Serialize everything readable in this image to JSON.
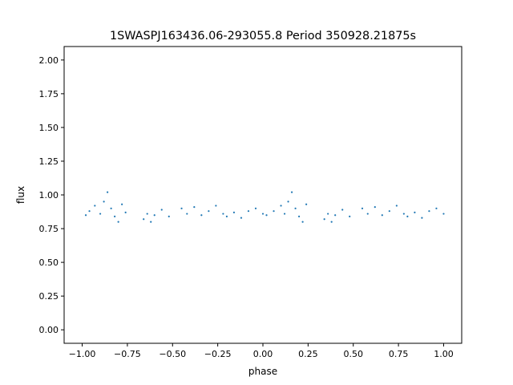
{
  "chart_data": {
    "type": "scatter",
    "title": "1SWASPJ163436.06-293055.8 Period 350928.21875s",
    "xlabel": "phase",
    "ylabel": "flux",
    "xlim": [
      -1.1,
      1.1
    ],
    "ylim": [
      -0.1,
      2.1
    ],
    "x_ticks": [
      -1.0,
      -0.75,
      -0.5,
      -0.25,
      0.0,
      0.25,
      0.5,
      0.75,
      1.0
    ],
    "x_tick_labels": [
      "−1.00",
      "−0.75",
      "−0.50",
      "−0.25",
      "0.00",
      "0.25",
      "0.50",
      "0.75",
      "1.00"
    ],
    "y_ticks": [
      0.0,
      0.25,
      0.5,
      0.75,
      1.0,
      1.25,
      1.5,
      1.75,
      2.0
    ],
    "y_tick_labels": [
      "0.00",
      "0.25",
      "0.50",
      "0.75",
      "1.00",
      "1.25",
      "1.50",
      "1.75",
      "2.00"
    ],
    "grid": false,
    "marker_color": "#1f77b4",
    "series": [
      {
        "x": [
          -0.98,
          -0.96,
          -0.93,
          -0.9,
          -0.88,
          -0.86,
          -0.84,
          -0.82,
          -0.8,
          -0.78,
          -0.76,
          -0.66,
          -0.64,
          -0.62,
          -0.6,
          -0.56,
          -0.52,
          -0.45,
          -0.42,
          -0.38,
          -0.34,
          -0.3,
          -0.26,
          -0.22,
          -0.2,
          -0.16,
          -0.12,
          -0.08,
          -0.04,
          0.0,
          0.02,
          0.06,
          0.1,
          0.12,
          0.14,
          0.16,
          0.18,
          0.2,
          0.22,
          0.24,
          0.34,
          0.36,
          0.38,
          0.4,
          0.44,
          0.48,
          0.55,
          0.58,
          0.62,
          0.66,
          0.7,
          0.74,
          0.78,
          0.8,
          0.84,
          0.88,
          0.92,
          0.96,
          1.0
        ],
        "y": [
          0.85,
          0.88,
          0.92,
          0.86,
          0.95,
          1.02,
          0.9,
          0.84,
          0.8,
          0.93,
          0.87,
          0.82,
          0.86,
          0.8,
          0.85,
          0.89,
          0.84,
          0.9,
          0.86,
          0.91,
          0.85,
          0.88,
          0.92,
          0.86,
          0.84,
          0.87,
          0.83,
          0.88,
          0.9,
          0.86,
          0.85,
          0.88,
          0.92,
          0.86,
          0.95,
          1.02,
          0.9,
          0.84,
          0.8,
          0.93,
          0.82,
          0.86,
          0.8,
          0.85,
          0.89,
          0.84,
          0.9,
          0.86,
          0.91,
          0.85,
          0.88,
          0.92,
          0.86,
          0.84,
          0.87,
          0.83,
          0.88,
          0.9,
          0.86
        ]
      }
    ]
  }
}
